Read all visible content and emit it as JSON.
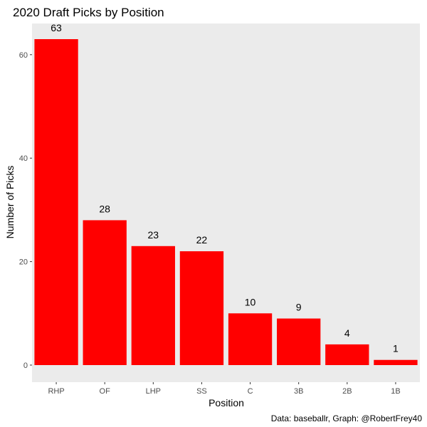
{
  "chart_data": {
    "type": "bar",
    "title": "2020 Draft Picks by Position",
    "xlabel": "Position",
    "ylabel": "Number of Picks",
    "caption": "Data: baseballr, Graph: @RobertFrey40",
    "categories": [
      "RHP",
      "OF",
      "LHP",
      "SS",
      "C",
      "3B",
      "2B",
      "1B"
    ],
    "values": [
      63,
      28,
      23,
      22,
      10,
      9,
      4,
      1
    ],
    "ylim": [
      0,
      66
    ],
    "yticks": [
      0,
      20,
      40,
      60
    ],
    "grid": false,
    "bar_color": "#ff0000",
    "panel_color": "#ebebeb"
  }
}
